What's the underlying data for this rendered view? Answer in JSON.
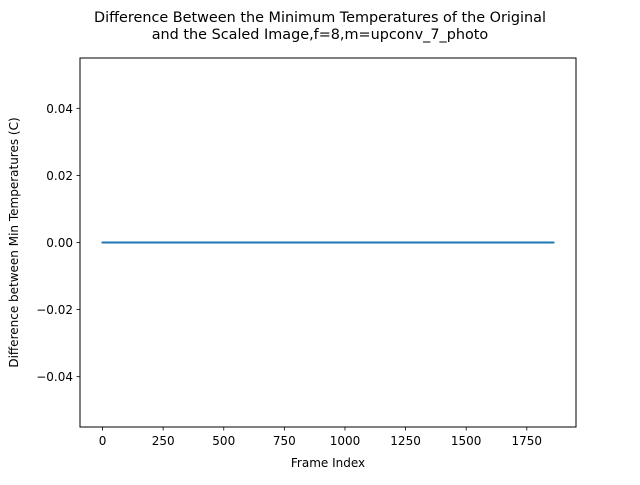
{
  "chart_data": {
    "type": "line",
    "title_lines": [
      "Difference Between the Minimum Temperatures of the Original",
      "and the Scaled Image,f=8,m=upconv_7_photo"
    ],
    "xlabel": "Frame Index",
    "ylabel": "Difference between Min Temperatures (C)",
    "xlim": [
      -93,
      1953
    ],
    "ylim": [
      -0.055,
      0.055
    ],
    "x_ticks": [
      0,
      250,
      500,
      750,
      1000,
      1250,
      1500,
      1750
    ],
    "x_tick_labels": [
      "0",
      "250",
      "500",
      "750",
      "1000",
      "1250",
      "1500",
      "1750"
    ],
    "y_ticks": [
      -0.04,
      -0.02,
      0.0,
      0.02,
      0.04
    ],
    "y_tick_labels": [
      "−0.04",
      "−0.02",
      "0.00",
      "0.02",
      "0.04"
    ],
    "grid": false,
    "series": [
      {
        "x": [
          0,
          1860
        ],
        "values": [
          0.0,
          0.0
        ],
        "color": "#1f77b4"
      }
    ]
  }
}
